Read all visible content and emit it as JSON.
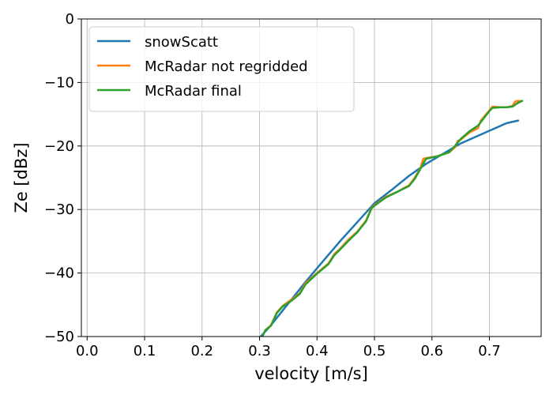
{
  "chart_data": {
    "type": "line",
    "title": "",
    "xlabel": "velocity [m/s]",
    "ylabel": "Ze [dBz]",
    "xlim": [
      -0.01,
      0.79
    ],
    "ylim": [
      -50,
      0
    ],
    "xticks": [
      0.0,
      0.1,
      0.2,
      0.3,
      0.4,
      0.5,
      0.6,
      0.7
    ],
    "xtick_labels": [
      "0.0",
      "0.1",
      "0.2",
      "0.3",
      "0.4",
      "0.5",
      "0.6",
      "0.7"
    ],
    "yticks": [
      -50,
      -40,
      -30,
      -20,
      -10,
      0
    ],
    "ytick_labels": [
      "−50",
      "−40",
      "−30",
      "−20",
      "−10",
      "0"
    ],
    "grid": true,
    "legend_position": "top-left",
    "series": [
      {
        "name": "snowScatt",
        "color": "#1f77b4",
        "x": [
          0.302,
          0.32,
          0.35,
          0.38,
          0.41,
          0.44,
          0.47,
          0.5,
          0.53,
          0.56,
          0.59,
          0.62,
          0.65,
          0.68,
          0.7,
          0.73,
          0.75
        ],
        "y": [
          -51,
          -48.2,
          -44.8,
          -41.4,
          -38.2,
          -35.0,
          -32.0,
          -29.0,
          -26.9,
          -24.7,
          -22.8,
          -21.2,
          -19.6,
          -18.4,
          -17.6,
          -16.4,
          -16.0
        ]
      },
      {
        "name": "McRadar not regridded",
        "color": "#ff7f0e",
        "x": [
          0.31,
          0.32,
          0.33,
          0.34,
          0.355,
          0.37,
          0.38,
          0.4,
          0.42,
          0.43,
          0.44,
          0.455,
          0.47,
          0.485,
          0.495,
          0.5,
          0.52,
          0.54,
          0.56,
          0.57,
          0.58,
          0.585,
          0.59,
          0.61,
          0.63,
          0.64,
          0.645,
          0.65,
          0.665,
          0.68,
          0.685,
          0.7,
          0.705,
          0.72,
          0.73,
          0.74,
          0.745,
          0.75,
          0.755
        ],
        "y": [
          -49.0,
          -48.2,
          -46.2,
          -45.2,
          -44.2,
          -43.2,
          -41.6,
          -40.0,
          -38.5,
          -37.0,
          -36.2,
          -34.7,
          -33.5,
          -31.8,
          -29.7,
          -29.3,
          -28.0,
          -27.2,
          -26.2,
          -25.0,
          -23.5,
          -22.0,
          -21.9,
          -21.6,
          -21.0,
          -20.2,
          -19.2,
          -19.0,
          -17.9,
          -17.2,
          -16.0,
          -14.4,
          -13.8,
          -13.9,
          -13.9,
          -13.7,
          -13.0,
          -12.9,
          -12.9
        ]
      },
      {
        "name": "McRadar final",
        "color": "#2ca02c",
        "x": [
          0.305,
          0.31,
          0.32,
          0.33,
          0.34,
          0.355,
          0.37,
          0.38,
          0.4,
          0.42,
          0.43,
          0.44,
          0.455,
          0.47,
          0.485,
          0.495,
          0.5,
          0.52,
          0.54,
          0.56,
          0.57,
          0.58,
          0.59,
          0.61,
          0.63,
          0.64,
          0.65,
          0.665,
          0.68,
          0.7,
          0.705,
          0.72,
          0.73,
          0.74,
          0.75,
          0.757
        ],
        "y": [
          -50.2,
          -49.0,
          -48.3,
          -46.3,
          -45.3,
          -44.4,
          -43.3,
          -41.8,
          -40.1,
          -38.6,
          -37.2,
          -36.3,
          -34.9,
          -33.6,
          -31.9,
          -29.8,
          -29.4,
          -28.1,
          -27.2,
          -26.3,
          -25.2,
          -23.6,
          -22.0,
          -21.6,
          -21.0,
          -20.0,
          -18.9,
          -17.7,
          -16.8,
          -14.5,
          -14.0,
          -13.9,
          -13.9,
          -13.8,
          -13.2,
          -12.9
        ]
      }
    ]
  }
}
